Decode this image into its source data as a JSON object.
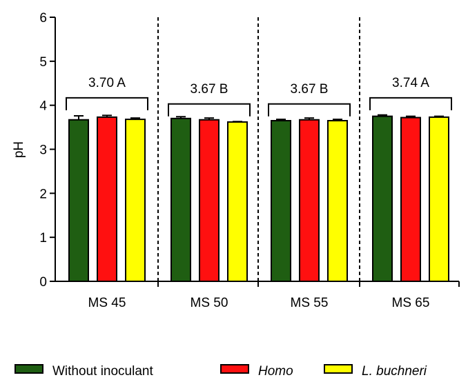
{
  "chart_data": {
    "type": "bar",
    "ylabel": "pH",
    "xlabel": "",
    "ylim": [
      0,
      6
    ],
    "yticks": [
      0,
      1,
      2,
      3,
      4,
      5,
      6
    ],
    "grid": false,
    "legend_position": "bottom",
    "categories": [
      "MS 45",
      "MS 50",
      "MS 55",
      "MS 65"
    ],
    "series": [
      {
        "name": "Without inoculant",
        "color": "#1f5e12",
        "italic": false,
        "values": [
          3.67,
          3.7,
          3.65,
          3.75
        ],
        "errors": [
          0.09,
          0.04,
          0.03,
          0.03
        ]
      },
      {
        "name": "Homo",
        "color": "#ff1010",
        "italic": true,
        "values": [
          3.73,
          3.67,
          3.67,
          3.72
        ],
        "errors": [
          0.04,
          0.04,
          0.04,
          0.03
        ]
      },
      {
        "name": "L. buchneri",
        "color": "#ffff00",
        "italic": true,
        "values": [
          3.68,
          3.62,
          3.65,
          3.73
        ],
        "errors": [
          0.03,
          0.01,
          0.03,
          0.02
        ]
      }
    ],
    "annotations": [
      {
        "category": "MS 45",
        "text": "3.70 A",
        "bracket_y": 4.17
      },
      {
        "category": "MS 50",
        "text": "3.67 B",
        "bracket_y": 4.03
      },
      {
        "category": "MS 55",
        "text": "3.67 B",
        "bracket_y": 4.03
      },
      {
        "category": "MS 65",
        "text": "3.74 A",
        "bracket_y": 4.17
      }
    ],
    "separators": "dashed vertical lines between categories"
  }
}
